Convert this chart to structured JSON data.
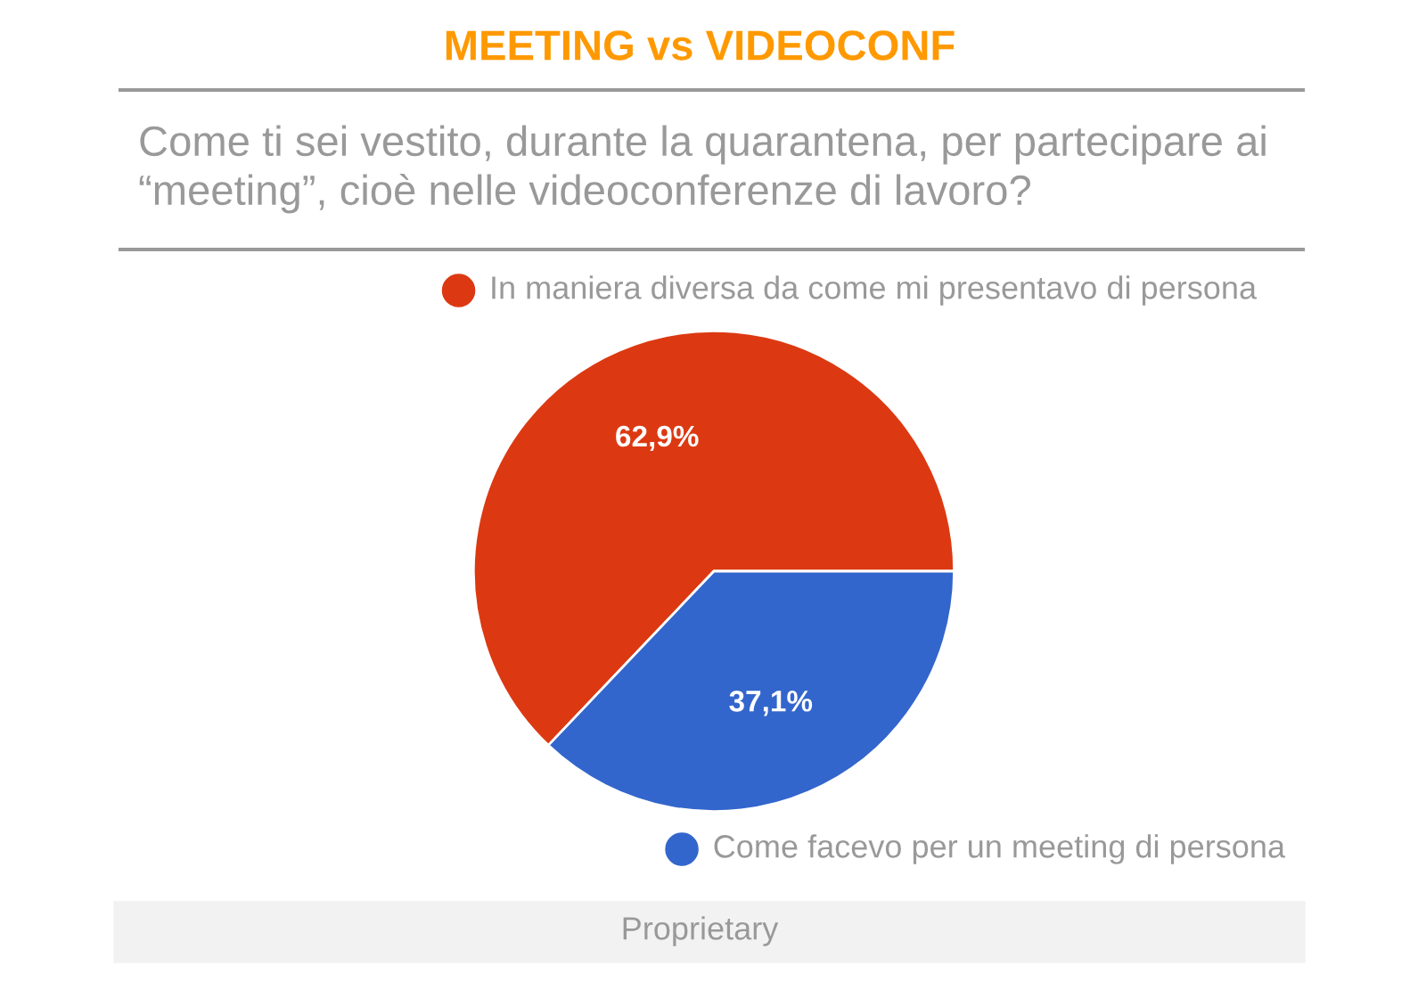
{
  "chart_data": {
    "type": "pie",
    "title": "MEETING vs VIDEOCONF",
    "subtitle": "Come ti sei vestito, durante la quarantena, per partecipare ai “meeting”, cioè nelle videoconferenze di lavoro?",
    "categories": [
      "In maniera diversa da come mi presentavo di persona",
      "Come facevo per un meeting di persona"
    ],
    "values": [
      62.9,
      37.1
    ],
    "colors": [
      "#dc3912",
      "#3366cc"
    ],
    "value_labels": [
      "62,9%",
      "37,1%"
    ],
    "legend": "top right",
    "annotations": [
      "Proprietary"
    ]
  }
}
